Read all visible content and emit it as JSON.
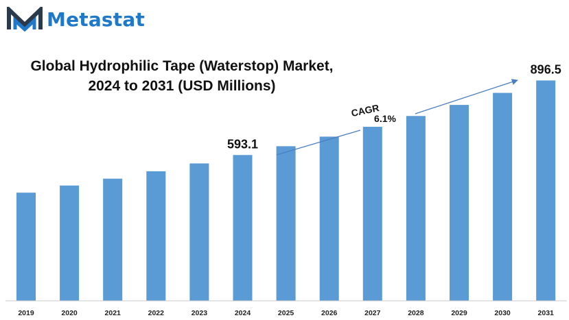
{
  "brand": {
    "name": "Metastat",
    "logo_icon": "metastat-m-icon",
    "color": "#1f78c8"
  },
  "title_line1": "Global Hydrophilic Tape (Waterstop) Market,",
  "title_line2": "2024 to 2031 (USD Millions)",
  "cagr": {
    "label": "CAGR",
    "value": "6.1%"
  },
  "chart_data": {
    "type": "bar",
    "title": "Global Hydrophilic Tape (Waterstop) Market, 2024 to 2031 (USD Millions)",
    "categories": [
      "2019",
      "2020",
      "2021",
      "2022",
      "2023",
      "2024",
      "2025",
      "2026",
      "2027",
      "2028",
      "2029",
      "2030",
      "2031"
    ],
    "values": [
      440,
      469,
      497,
      527,
      559,
      593.1,
      629,
      668,
      708,
      752,
      797,
      846,
      896.5
    ],
    "data_labels": [
      {
        "category": "2024",
        "text": "593.1"
      },
      {
        "category": "2031",
        "text": "896.5"
      }
    ],
    "ylim": [
      0,
      920
    ],
    "bar_color": "#5b9bd5",
    "grid": false,
    "legend": "none"
  }
}
